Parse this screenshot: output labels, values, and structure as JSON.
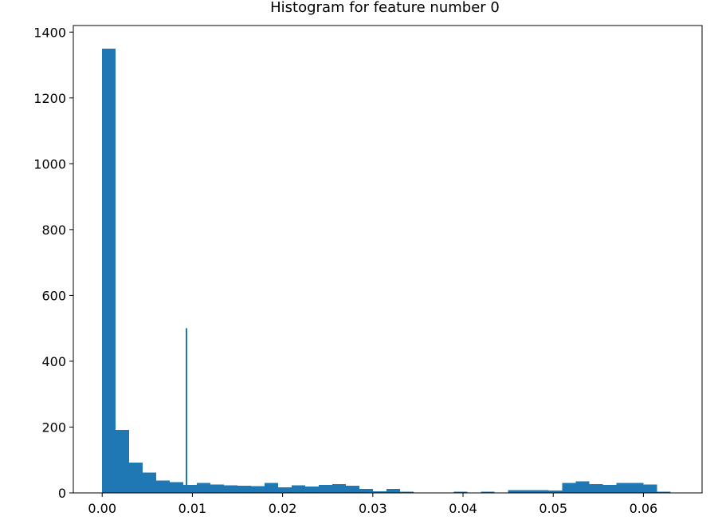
{
  "chart_data": {
    "type": "bar",
    "title": "Histogram for feature number 0",
    "xlabel": "",
    "ylabel": "",
    "xlim": [
      -0.0032,
      0.0665
    ],
    "ylim": [
      0,
      1420
    ],
    "xticks": [
      0.0,
      0.01,
      0.02,
      0.03,
      0.04,
      0.05,
      0.06
    ],
    "xtick_labels": [
      "0.00",
      "0.01",
      "0.02",
      "0.03",
      "0.04",
      "0.05",
      "0.06"
    ],
    "yticks": [
      0,
      200,
      400,
      600,
      800,
      1000,
      1200,
      1400
    ],
    "ytick_labels": [
      "0",
      "200",
      "400",
      "600",
      "800",
      "1000",
      "1200",
      "1400"
    ],
    "bar_color": "#1f77b4",
    "grid": false,
    "bins": [
      {
        "x0": 0.0,
        "x1": 0.0015,
        "count": 1350
      },
      {
        "x0": 0.0015,
        "x1": 0.003,
        "count": 192
      },
      {
        "x0": 0.003,
        "x1": 0.0045,
        "count": 92
      },
      {
        "x0": 0.0045,
        "x1": 0.006,
        "count": 62
      },
      {
        "x0": 0.006,
        "x1": 0.0075,
        "count": 38
      },
      {
        "x0": 0.0075,
        "x1": 0.009,
        "count": 33
      },
      {
        "x0": 0.009,
        "x1": 0.0105,
        "count": 24
      },
      {
        "x0": 0.0105,
        "x1": 0.012,
        "count": 30
      },
      {
        "x0": 0.012,
        "x1": 0.0135,
        "count": 26
      },
      {
        "x0": 0.0135,
        "x1": 0.015,
        "count": 23
      },
      {
        "x0": 0.015,
        "x1": 0.0165,
        "count": 22
      },
      {
        "x0": 0.0165,
        "x1": 0.018,
        "count": 20
      },
      {
        "x0": 0.018,
        "x1": 0.0195,
        "count": 30
      },
      {
        "x0": 0.0195,
        "x1": 0.021,
        "count": 17
      },
      {
        "x0": 0.021,
        "x1": 0.0225,
        "count": 23
      },
      {
        "x0": 0.0225,
        "x1": 0.024,
        "count": 19
      },
      {
        "x0": 0.024,
        "x1": 0.0255,
        "count": 24
      },
      {
        "x0": 0.0255,
        "x1": 0.027,
        "count": 27
      },
      {
        "x0": 0.027,
        "x1": 0.0285,
        "count": 22
      },
      {
        "x0": 0.0285,
        "x1": 0.03,
        "count": 12
      },
      {
        "x0": 0.03,
        "x1": 0.0315,
        "count": 5
      },
      {
        "x0": 0.0315,
        "x1": 0.033,
        "count": 12
      },
      {
        "x0": 0.033,
        "x1": 0.0345,
        "count": 4
      },
      {
        "x0": 0.039,
        "x1": 0.0405,
        "count": 4
      },
      {
        "x0": 0.042,
        "x1": 0.0435,
        "count": 4
      },
      {
        "x0": 0.045,
        "x1": 0.0465,
        "count": 9
      },
      {
        "x0": 0.0465,
        "x1": 0.048,
        "count": 9
      },
      {
        "x0": 0.048,
        "x1": 0.0495,
        "count": 9
      },
      {
        "x0": 0.0495,
        "x1": 0.051,
        "count": 7
      },
      {
        "x0": 0.051,
        "x1": 0.0525,
        "count": 30
      },
      {
        "x0": 0.0525,
        "x1": 0.054,
        "count": 35
      },
      {
        "x0": 0.054,
        "x1": 0.0555,
        "count": 27
      },
      {
        "x0": 0.0555,
        "x1": 0.057,
        "count": 24
      },
      {
        "x0": 0.057,
        "x1": 0.0585,
        "count": 30
      },
      {
        "x0": 0.0585,
        "x1": 0.06,
        "count": 30
      },
      {
        "x0": 0.06,
        "x1": 0.0615,
        "count": 26
      },
      {
        "x0": 0.0615,
        "x1": 0.063,
        "count": 4
      }
    ],
    "spikes": [
      {
        "x": 0.00935,
        "count": 500
      }
    ]
  }
}
